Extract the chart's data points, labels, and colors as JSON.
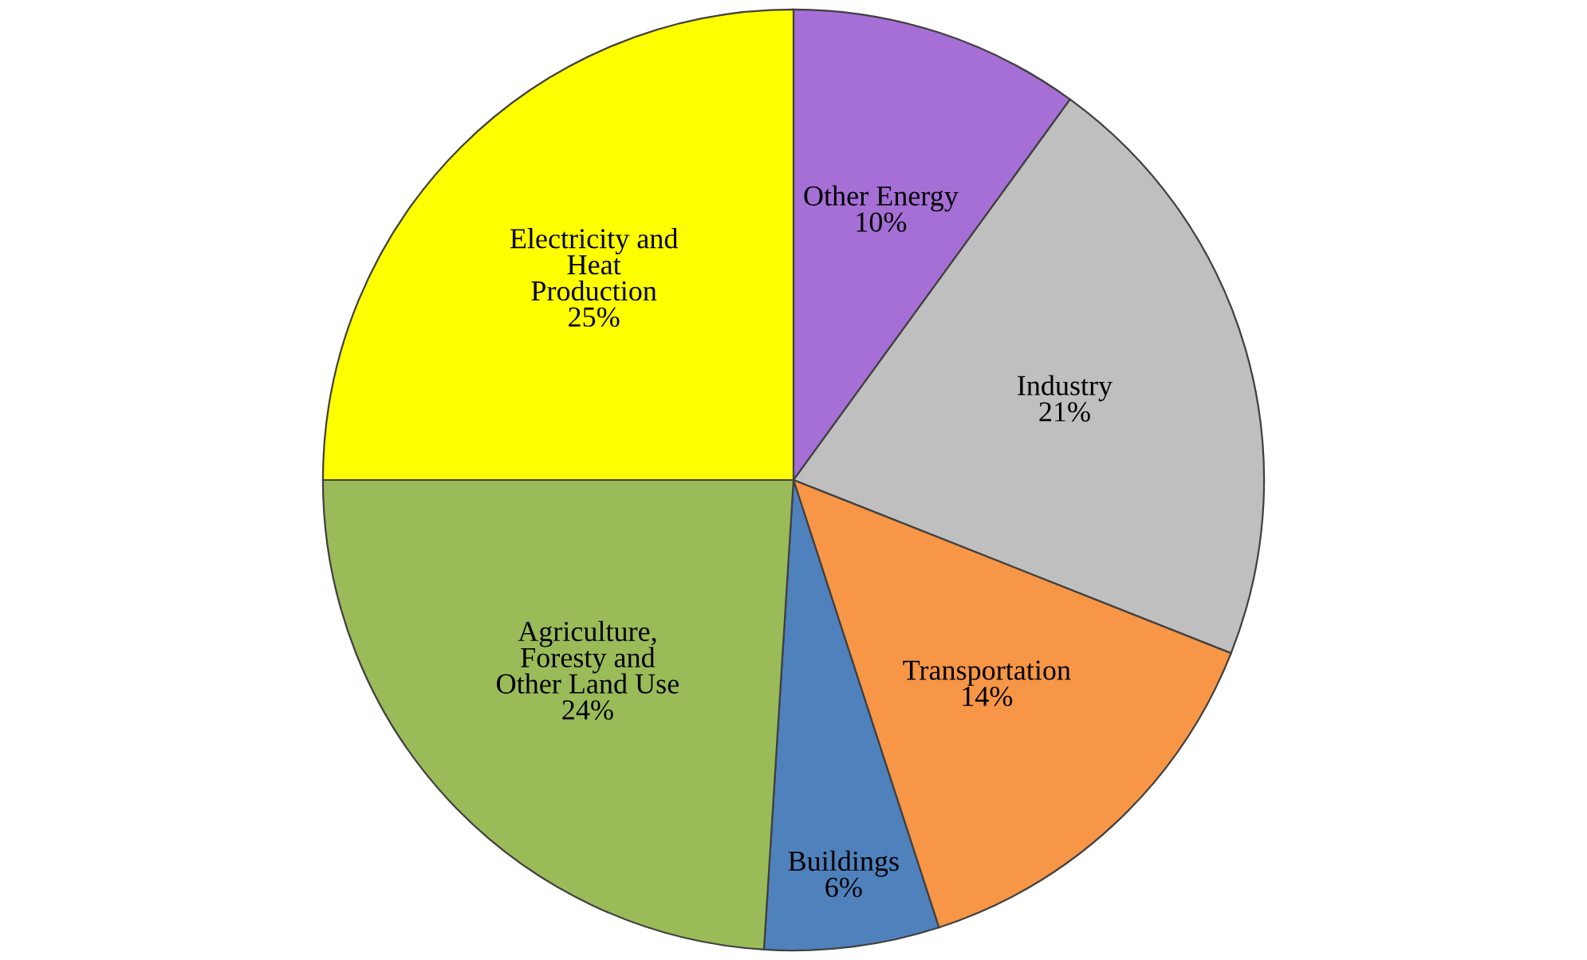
{
  "chart_data": {
    "type": "pie",
    "categories": [
      "Other Energy",
      "Industry",
      "Transportation",
      "Buildings",
      "Agriculture,\nForesty and\nOther Land Use",
      "Electricity and\nHeat\nProduction"
    ],
    "values": [
      10,
      21,
      14,
      6,
      24,
      25
    ],
    "value_labels": [
      "10%",
      "21%",
      "14%",
      "6%",
      "24%",
      "25%"
    ],
    "colors": [
      "#a66fd6",
      "#bfbfbf",
      "#f79646",
      "#4f81bd",
      "#9bbb59",
      "#ffff00"
    ]
  }
}
